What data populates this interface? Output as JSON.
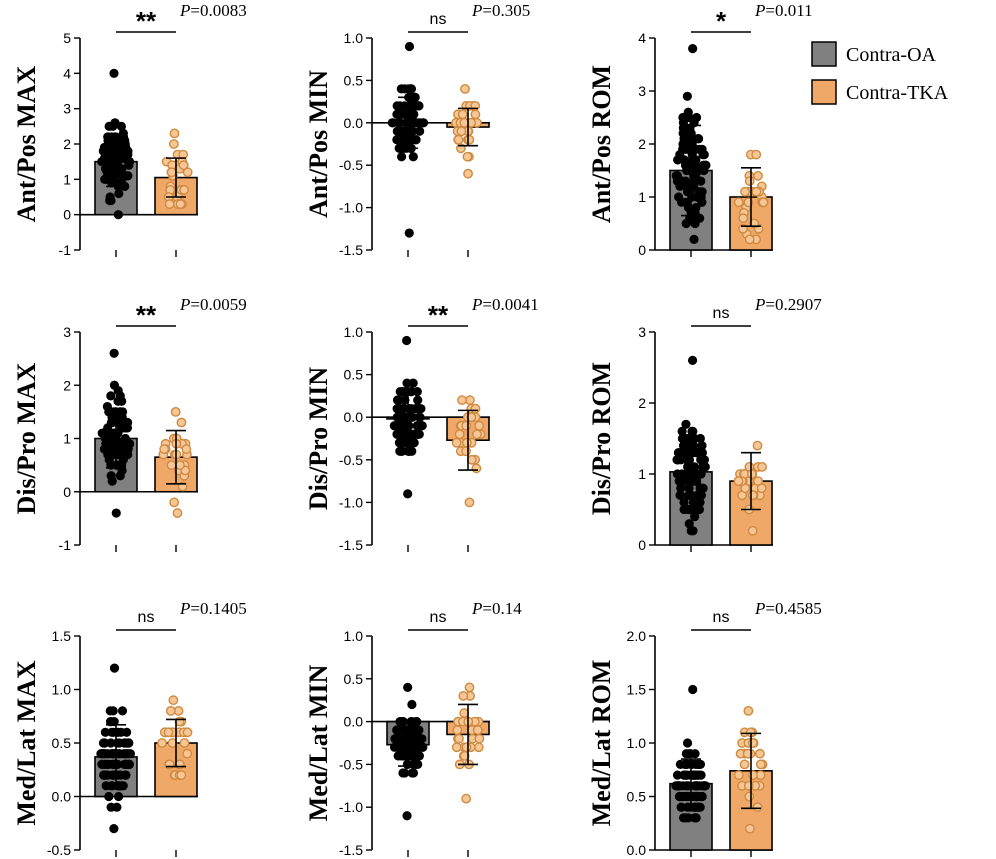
{
  "colors": {
    "oa": "#808080",
    "tka": "#f0a868",
    "oa_dot": "#000000",
    "tka_dot": "#d08a40"
  },
  "legend": [
    {
      "label": "Contra-OA",
      "color": "#808080"
    },
    {
      "label": "Contra-TKA",
      "color": "#f0a868"
    }
  ],
  "chart_data": [
    {
      "type": "bar",
      "ylabel": "Ant/Pos MAX",
      "ylim": [
        -1,
        5
      ],
      "ticks": [
        -1,
        0,
        1,
        2,
        3,
        4,
        5
      ],
      "tick_labels": [
        "-1",
        "0",
        "1",
        "2",
        "3",
        "4",
        "5"
      ],
      "sig": "**",
      "p_label": "P",
      "p_value": "=0.0083",
      "groups": [
        {
          "name": "Contra-OA",
          "mean": 1.5,
          "sd": 0.7,
          "n": 95,
          "min": 0.0,
          "max": 4.0
        },
        {
          "name": "Contra-TKA",
          "mean": 1.05,
          "sd": 0.55,
          "n": 28,
          "min": 0.3,
          "max": 2.3
        }
      ]
    },
    {
      "type": "bar",
      "ylabel": "Ant/Pos MIN",
      "ylim": [
        -1.5,
        1.0
      ],
      "ticks": [
        -1.5,
        -1.0,
        -0.5,
        0.0,
        0.5,
        1.0
      ],
      "tick_labels": [
        "-1.5",
        "-1.0",
        "-0.5",
        "0.0",
        "0.5",
        "1.0"
      ],
      "sig": "ns",
      "p_label": "P",
      "p_value": "=0.305",
      "groups": [
        {
          "name": "Contra-OA",
          "mean": 0.0,
          "sd": 0.3,
          "n": 95,
          "min": -1.3,
          "max": 0.9
        },
        {
          "name": "Contra-TKA",
          "mean": -0.05,
          "sd": 0.22,
          "n": 28,
          "min": -0.6,
          "max": 0.4
        }
      ]
    },
    {
      "type": "bar",
      "ylabel": "Ant/Pos ROM",
      "ylim": [
        0,
        4
      ],
      "ticks": [
        0,
        1,
        2,
        3,
        4
      ],
      "tick_labels": [
        "0",
        "1",
        "2",
        "3",
        "4"
      ],
      "sig": "*",
      "p_label": "P",
      "p_value": "=0.011",
      "groups": [
        {
          "name": "Contra-OA",
          "mean": 1.5,
          "sd": 0.85,
          "n": 95,
          "min": 0.2,
          "max": 3.8
        },
        {
          "name": "Contra-TKA",
          "mean": 1.0,
          "sd": 0.55,
          "n": 26,
          "min": 0.2,
          "max": 1.8
        }
      ]
    },
    {
      "type": "bar",
      "ylabel": "Dis/Pro MAX",
      "ylim": [
        -1,
        3
      ],
      "ticks": [
        -1,
        0,
        1,
        2,
        3
      ],
      "tick_labels": [
        "-1",
        "0",
        "1",
        "2",
        "3"
      ],
      "sig": "**",
      "p_label": "P",
      "p_value": "=0.0059",
      "groups": [
        {
          "name": "Contra-OA",
          "mean": 1.0,
          "sd": 0.55,
          "n": 95,
          "min": -0.4,
          "max": 2.6
        },
        {
          "name": "Contra-TKA",
          "mean": 0.65,
          "sd": 0.5,
          "n": 26,
          "min": -0.4,
          "max": 1.5
        }
      ]
    },
    {
      "type": "bar",
      "ylabel": "Dis/Pro MIN",
      "ylim": [
        -1.5,
        1.0
      ],
      "ticks": [
        -1.5,
        -1.0,
        -0.5,
        0.0,
        0.5,
        1.0
      ],
      "tick_labels": [
        "-1.5",
        "-1.0",
        "-0.5",
        "0.0",
        "0.5",
        "1.0"
      ],
      "sig": "**",
      "p_label": "P",
      "p_value": "=0.0041",
      "groups": [
        {
          "name": "Contra-OA",
          "mean": -0.02,
          "sd": 0.3,
          "n": 95,
          "min": -0.9,
          "max": 0.9
        },
        {
          "name": "Contra-TKA",
          "mean": -0.27,
          "sd": 0.35,
          "n": 26,
          "min": -1.0,
          "max": 0.2
        }
      ]
    },
    {
      "type": "bar",
      "ylabel": "Dis/Pro ROM",
      "ylim": [
        0,
        3
      ],
      "ticks": [
        0,
        1,
        2,
        3
      ],
      "tick_labels": [
        "0",
        "1",
        "2",
        "3"
      ],
      "sig": "ns",
      "p_label": "P",
      "p_value": "=0.2907",
      "groups": [
        {
          "name": "Contra-OA",
          "mean": 1.03,
          "sd": 0.5,
          "n": 95,
          "min": 0.2,
          "max": 2.6
        },
        {
          "name": "Contra-TKA",
          "mean": 0.9,
          "sd": 0.4,
          "n": 28,
          "min": 0.2,
          "max": 1.4
        }
      ]
    },
    {
      "type": "bar",
      "ylabel": "Med/Lat MAX",
      "ylim": [
        -0.5,
        1.5
      ],
      "ticks": [
        -0.5,
        0.0,
        0.5,
        1.0,
        1.5
      ],
      "tick_labels": [
        "-0.5",
        "0.0",
        "0.5",
        "1.0",
        "1.5"
      ],
      "sig": "ns",
      "p_label": "P",
      "p_value": "=0.1405",
      "groups": [
        {
          "name": "Contra-OA",
          "mean": 0.37,
          "sd": 0.3,
          "n": 95,
          "min": -0.3,
          "max": 1.2
        },
        {
          "name": "Contra-TKA",
          "mean": 0.5,
          "sd": 0.22,
          "n": 26,
          "min": 0.2,
          "max": 0.9
        }
      ]
    },
    {
      "type": "bar",
      "ylabel": "Med/Lat MIN",
      "ylim": [
        -1.5,
        1.0
      ],
      "ticks": [
        -1.5,
        -1.0,
        -0.5,
        0.0,
        0.5,
        1.0
      ],
      "tick_labels": [
        "-1.5",
        "-1.0",
        "-0.5",
        "0.0",
        "0.5",
        "1.0"
      ],
      "sig": "ns",
      "p_label": "P",
      "p_value": "=0.14",
      "groups": [
        {
          "name": "Contra-OA",
          "mean": -0.27,
          "sd": 0.25,
          "n": 95,
          "min": -1.1,
          "max": 0.4
        },
        {
          "name": "Contra-TKA",
          "mean": -0.15,
          "sd": 0.35,
          "n": 28,
          "min": -0.9,
          "max": 0.4
        }
      ]
    },
    {
      "type": "bar",
      "ylabel": "Med/Lat ROM",
      "ylim": [
        0.0,
        2.0
      ],
      "ticks": [
        0.0,
        0.5,
        1.0,
        1.5,
        2.0
      ],
      "tick_labels": [
        "0.0",
        "0.5",
        "1.0",
        "1.5",
        "2.0"
      ],
      "sig": "ns",
      "p_label": "P",
      "p_value": "=0.4585",
      "groups": [
        {
          "name": "Contra-OA",
          "mean": 0.62,
          "sd": 0.23,
          "n": 95,
          "min": 0.3,
          "max": 1.5
        },
        {
          "name": "Contra-TKA",
          "mean": 0.74,
          "sd": 0.35,
          "n": 28,
          "min": 0.2,
          "max": 1.3
        }
      ]
    }
  ]
}
